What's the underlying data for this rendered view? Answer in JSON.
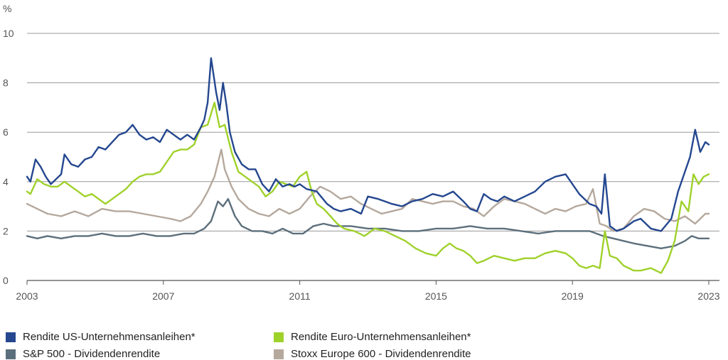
{
  "chart_data": {
    "type": "line",
    "ylabel": "%",
    "ylim": [
      0,
      10
    ],
    "yticks": [
      "0",
      "2",
      "4",
      "6",
      "8",
      "10"
    ],
    "xlim": [
      2003,
      2023.2
    ],
    "xticks": [
      "2003",
      "2007",
      "2011",
      "2015",
      "2019",
      "2023"
    ],
    "grid": "horizontal",
    "legend_position": "bottom",
    "series": [
      {
        "name": "Rendite US-Unternehmensanleihen*",
        "color": "#24478f",
        "x": [
          2003.0,
          2003.1,
          2003.25,
          2003.4,
          2003.55,
          2003.7,
          2003.85,
          2004.0,
          2004.1,
          2004.3,
          2004.5,
          2004.7,
          2004.9,
          2005.1,
          2005.3,
          2005.5,
          2005.7,
          2005.9,
          2006.1,
          2006.3,
          2006.5,
          2006.7,
          2006.9,
          2007.1,
          2007.3,
          2007.5,
          2007.7,
          2007.9,
          2008.1,
          2008.2,
          2008.3,
          2008.4,
          2008.55,
          2008.65,
          2008.75,
          2008.85,
          2008.95,
          2009.1,
          2009.3,
          2009.5,
          2009.7,
          2009.9,
          2010.1,
          2010.3,
          2010.5,
          2010.7,
          2010.85,
          2011.0,
          2011.2,
          2011.5,
          2011.8,
          2012.0,
          2012.2,
          2012.5,
          2012.8,
          2013.0,
          2013.3,
          2013.5,
          2013.7,
          2014.0,
          2014.3,
          2014.6,
          2014.9,
          2015.2,
          2015.5,
          2015.8,
          2016.0,
          2016.2,
          2016.4,
          2016.6,
          2016.8,
          2017.0,
          2017.3,
          2017.6,
          2017.9,
          2018.2,
          2018.5,
          2018.8,
          2019.0,
          2019.2,
          2019.5,
          2019.7,
          2019.85,
          2019.95,
          2020.1,
          2020.3,
          2020.5,
          2020.8,
          2021.0,
          2021.3,
          2021.6,
          2021.9,
          2022.1,
          2022.3,
          2022.45,
          2022.6,
          2022.75,
          2022.9,
          2023.0
        ],
        "values": [
          4.2,
          4.0,
          4.9,
          4.6,
          4.2,
          3.9,
          4.1,
          4.3,
          5.1,
          4.7,
          4.6,
          4.9,
          5.0,
          5.4,
          5.3,
          5.6,
          5.9,
          6.0,
          6.3,
          5.9,
          5.7,
          5.8,
          5.6,
          6.1,
          5.9,
          5.7,
          5.9,
          5.7,
          6.2,
          6.5,
          7.2,
          9.0,
          7.6,
          6.9,
          8.0,
          7.1,
          6.0,
          5.2,
          4.7,
          4.5,
          4.5,
          3.9,
          3.6,
          4.1,
          3.8,
          3.9,
          3.8,
          3.9,
          3.7,
          3.6,
          3.1,
          2.9,
          2.8,
          2.9,
          2.7,
          3.4,
          3.3,
          3.2,
          3.1,
          3.0,
          3.2,
          3.3,
          3.5,
          3.4,
          3.6,
          3.2,
          2.9,
          2.8,
          3.5,
          3.3,
          3.2,
          3.4,
          3.2,
          3.4,
          3.6,
          4.0,
          4.2,
          4.3,
          3.9,
          3.5,
          3.1,
          3.0,
          2.7,
          4.3,
          2.2,
          2.0,
          2.1,
          2.4,
          2.5,
          2.1,
          2.0,
          2.5,
          3.6,
          4.4,
          5.0,
          6.1,
          5.2,
          5.6,
          5.5
        ]
      },
      {
        "name": "Rendite Euro-Unternehmensanleihen*",
        "color": "#9fd12b",
        "x": [
          2003.0,
          2003.1,
          2003.3,
          2003.5,
          2003.7,
          2003.9,
          2004.1,
          2004.3,
          2004.5,
          2004.7,
          2004.9,
          2005.1,
          2005.3,
          2005.5,
          2005.7,
          2005.9,
          2006.1,
          2006.3,
          2006.5,
          2006.7,
          2006.9,
          2007.1,
          2007.3,
          2007.5,
          2007.7,
          2007.9,
          2008.1,
          2008.3,
          2008.5,
          2008.65,
          2008.8,
          2009.0,
          2009.2,
          2009.4,
          2009.6,
          2009.8,
          2010.0,
          2010.2,
          2010.4,
          2010.6,
          2010.8,
          2011.0,
          2011.2,
          2011.35,
          2011.5,
          2011.7,
          2011.9,
          2012.1,
          2012.3,
          2012.6,
          2012.9,
          2013.2,
          2013.5,
          2013.8,
          2014.1,
          2014.4,
          2014.7,
          2015.0,
          2015.2,
          2015.4,
          2015.6,
          2015.8,
          2016.0,
          2016.2,
          2016.4,
          2016.7,
          2017.0,
          2017.3,
          2017.6,
          2017.9,
          2018.2,
          2018.5,
          2018.8,
          2019.0,
          2019.2,
          2019.4,
          2019.6,
          2019.8,
          2019.95,
          2020.1,
          2020.3,
          2020.5,
          2020.8,
          2021.0,
          2021.3,
          2021.6,
          2021.8,
          2022.0,
          2022.2,
          2022.4,
          2022.55,
          2022.7,
          2022.85,
          2023.0
        ],
        "values": [
          3.6,
          3.5,
          4.1,
          3.9,
          3.8,
          3.8,
          4.0,
          3.8,
          3.6,
          3.4,
          3.5,
          3.3,
          3.1,
          3.3,
          3.5,
          3.7,
          4.0,
          4.2,
          4.3,
          4.3,
          4.4,
          4.8,
          5.2,
          5.3,
          5.3,
          5.5,
          6.2,
          6.3,
          7.2,
          6.2,
          6.3,
          5.2,
          4.4,
          4.2,
          4.0,
          3.8,
          3.4,
          3.6,
          4.0,
          3.9,
          3.8,
          4.2,
          4.4,
          3.6,
          3.1,
          2.9,
          2.6,
          2.3,
          2.1,
          2.0,
          1.8,
          2.1,
          2.0,
          1.8,
          1.6,
          1.3,
          1.1,
          1.0,
          1.3,
          1.5,
          1.3,
          1.2,
          1.0,
          0.7,
          0.8,
          1.0,
          0.9,
          0.8,
          0.9,
          0.9,
          1.1,
          1.2,
          1.1,
          0.9,
          0.6,
          0.5,
          0.6,
          0.5,
          2.0,
          1.0,
          0.9,
          0.6,
          0.4,
          0.4,
          0.5,
          0.3,
          0.8,
          1.6,
          3.2,
          2.8,
          4.3,
          3.9,
          4.2,
          4.3
        ]
      },
      {
        "name": "S&P 500 - Dividendenrendite",
        "color": "#5c6f7c",
        "x": [
          2003.0,
          2003.3,
          2003.6,
          2004.0,
          2004.4,
          2004.8,
          2005.2,
          2005.6,
          2006.0,
          2006.4,
          2006.8,
          2007.2,
          2007.6,
          2007.9,
          2008.2,
          2008.4,
          2008.6,
          2008.75,
          2008.9,
          2009.1,
          2009.3,
          2009.6,
          2009.9,
          2010.2,
          2010.5,
          2010.8,
          2011.1,
          2011.4,
          2011.7,
          2012.0,
          2012.5,
          2013.0,
          2013.5,
          2014.0,
          2014.5,
          2015.0,
          2015.5,
          2016.0,
          2016.5,
          2017.0,
          2017.5,
          2018.0,
          2018.5,
          2019.0,
          2019.5,
          2019.9,
          2020.2,
          2020.5,
          2020.8,
          2021.2,
          2021.6,
          2022.0,
          2022.3,
          2022.5,
          2022.7,
          2023.0
        ],
        "values": [
          1.8,
          1.7,
          1.8,
          1.7,
          1.8,
          1.8,
          1.9,
          1.8,
          1.8,
          1.9,
          1.8,
          1.8,
          1.9,
          1.9,
          2.1,
          2.4,
          3.2,
          3.0,
          3.3,
          2.6,
          2.2,
          2.0,
          2.0,
          1.9,
          2.1,
          1.9,
          1.9,
          2.2,
          2.3,
          2.2,
          2.2,
          2.1,
          2.1,
          2.0,
          2.0,
          2.1,
          2.1,
          2.2,
          2.1,
          2.1,
          2.0,
          1.9,
          2.0,
          2.0,
          2.0,
          1.8,
          1.7,
          1.6,
          1.5,
          1.4,
          1.3,
          1.4,
          1.6,
          1.8,
          1.7,
          1.7
        ]
      },
      {
        "name": "Stoxx Europe 600 - Dividendenrendite",
        "color": "#b5a89d",
        "x": [
          2003.0,
          2003.3,
          2003.6,
          2004.0,
          2004.4,
          2004.8,
          2005.2,
          2005.6,
          2006.0,
          2006.4,
          2006.8,
          2007.2,
          2007.5,
          2007.8,
          2008.1,
          2008.3,
          2008.5,
          2008.7,
          2008.8,
          2009.0,
          2009.2,
          2009.5,
          2009.8,
          2010.1,
          2010.4,
          2010.7,
          2011.0,
          2011.3,
          2011.6,
          2011.9,
          2012.2,
          2012.5,
          2012.8,
          2013.1,
          2013.4,
          2013.7,
          2014.0,
          2014.3,
          2014.6,
          2014.9,
          2015.2,
          2015.5,
          2015.8,
          2016.1,
          2016.4,
          2016.7,
          2017.0,
          2017.3,
          2017.6,
          2017.9,
          2018.2,
          2018.5,
          2018.8,
          2019.1,
          2019.4,
          2019.6,
          2019.8,
          2020.0,
          2020.2,
          2020.5,
          2020.8,
          2021.1,
          2021.4,
          2021.7,
          2022.0,
          2022.3,
          2022.6,
          2022.9,
          2023.0
        ],
        "values": [
          3.1,
          2.9,
          2.7,
          2.6,
          2.8,
          2.6,
          2.9,
          2.8,
          2.8,
          2.7,
          2.6,
          2.5,
          2.4,
          2.6,
          3.1,
          3.6,
          4.2,
          5.3,
          4.5,
          3.8,
          3.3,
          2.9,
          2.7,
          2.6,
          2.9,
          2.7,
          2.9,
          3.4,
          3.8,
          3.6,
          3.3,
          3.4,
          3.1,
          2.9,
          2.7,
          2.8,
          2.9,
          3.3,
          3.2,
          3.1,
          3.2,
          3.2,
          3.0,
          2.9,
          2.6,
          3.0,
          3.3,
          3.2,
          3.1,
          2.9,
          2.7,
          2.9,
          2.8,
          3.0,
          3.1,
          3.7,
          2.3,
          2.2,
          2.0,
          2.1,
          2.6,
          2.9,
          2.8,
          2.5,
          2.4,
          2.6,
          2.3,
          2.7,
          2.7
        ]
      }
    ]
  }
}
